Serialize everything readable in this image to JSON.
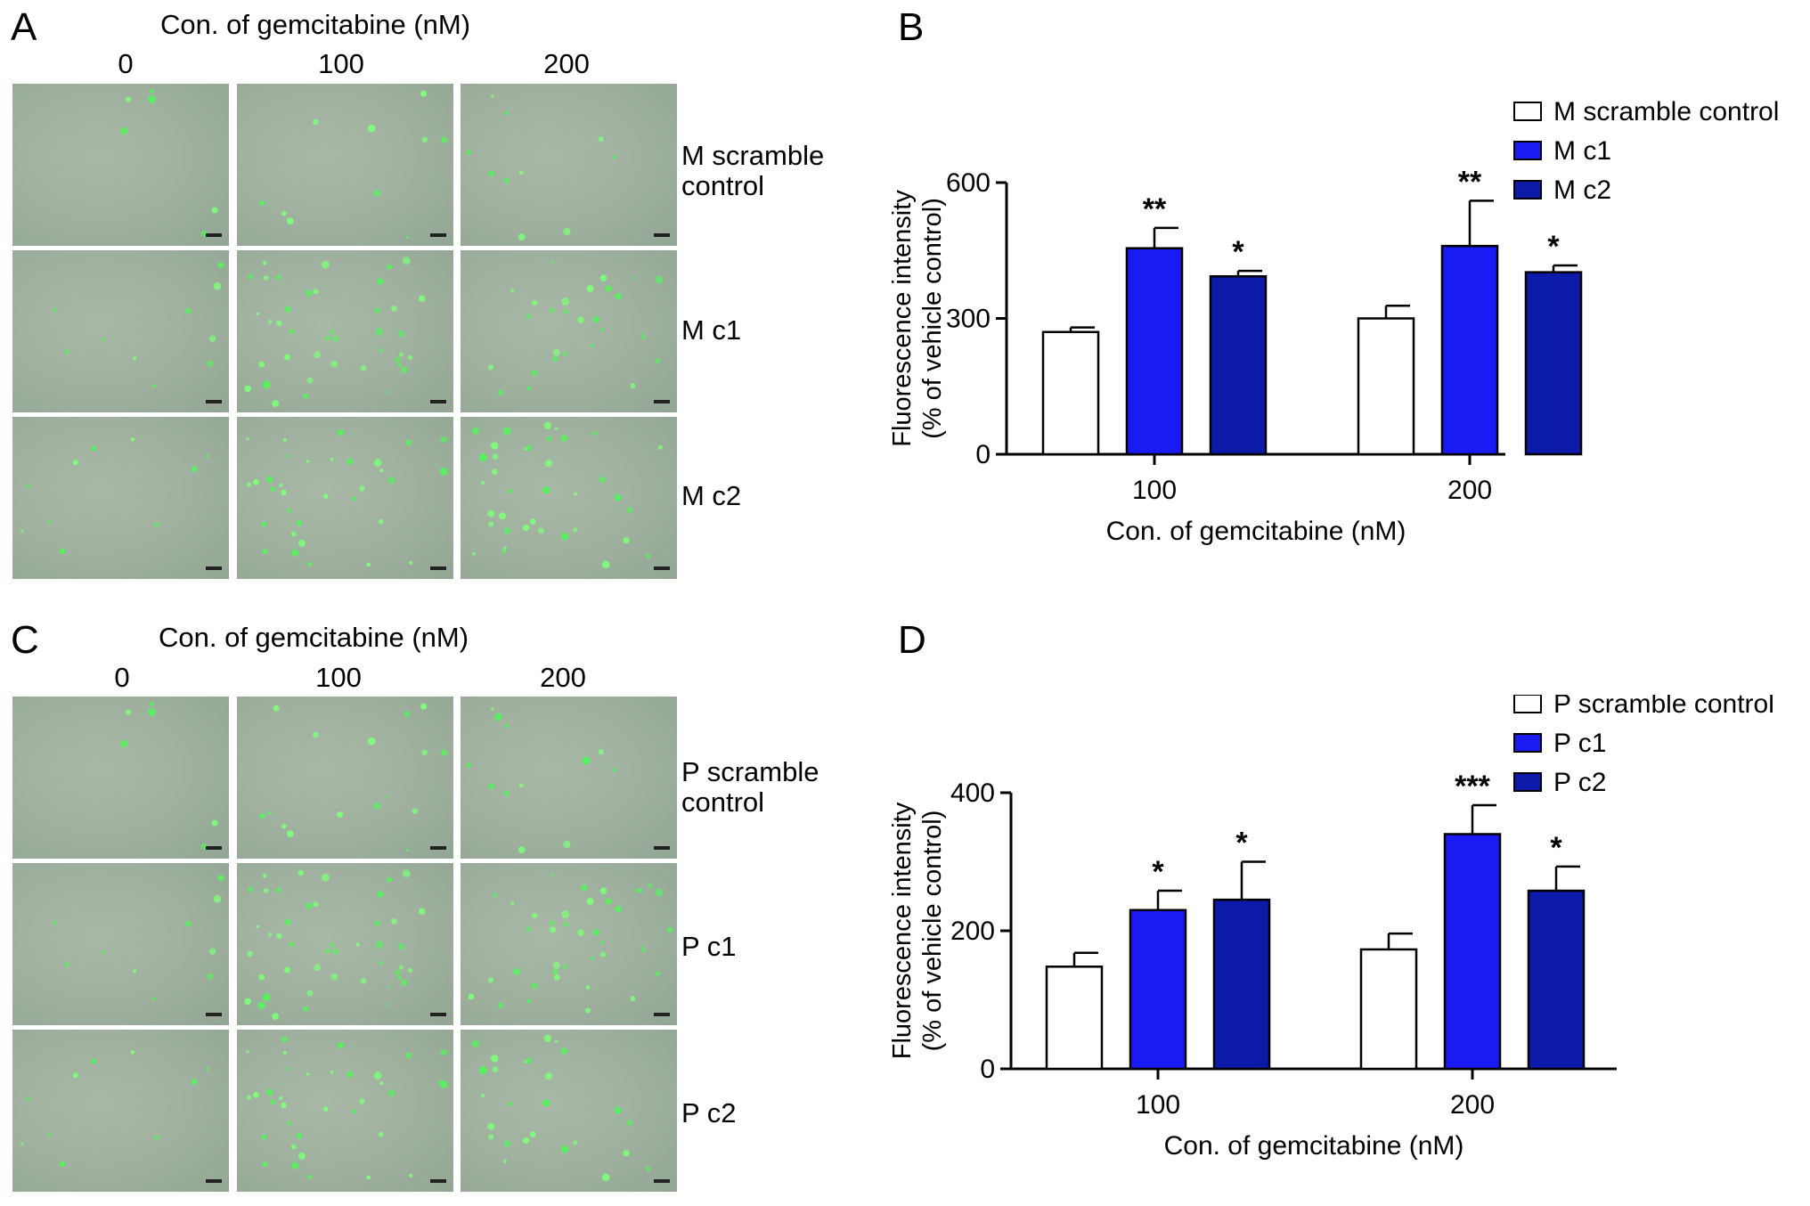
{
  "panels": {
    "A": {
      "letter": "A",
      "grid_title": "Con. of gemcitabine (nM)",
      "columns": [
        "0",
        "100",
        "200"
      ],
      "rows": [
        {
          "label_lines": [
            "M scramble",
            "control"
          ],
          "densities": [
            6,
            10,
            10
          ]
        },
        {
          "label_lines": [
            "M c1"
          ],
          "densities": [
            10,
            40,
            28
          ]
        },
        {
          "label_lines": [
            "M c2"
          ],
          "densities": [
            10,
            34,
            38
          ]
        }
      ]
    },
    "C": {
      "letter": "C",
      "grid_title": "Con. of gemcitabine (nM)",
      "columns": [
        "0",
        "100",
        "200"
      ],
      "rows": [
        {
          "label_lines": [
            "P scramble",
            "control"
          ],
          "densities": [
            6,
            16,
            12
          ]
        },
        {
          "label_lines": [
            "P c1"
          ],
          "densities": [
            10,
            45,
            40
          ]
        },
        {
          "label_lines": [
            "P c2"
          ],
          "densities": [
            10,
            36,
            26
          ]
        }
      ]
    },
    "B": {
      "letter": "B"
    },
    "D": {
      "letter": "D"
    }
  },
  "chart_data": [
    {
      "type": "bar",
      "panel": "B",
      "categories": [
        "100",
        "200"
      ],
      "xlabel": "Con. of gemcitabine (nM)",
      "ylabel_lines": [
        "Fluorescence intensity",
        "(% of vehicle control)"
      ],
      "ylim": [
        0,
        600
      ],
      "yticks": [
        "0",
        "300",
        "600"
      ],
      "legend_position": "top-right",
      "series": [
        {
          "name": "M scramble control",
          "color": "#ffffff",
          "values": [
            270,
            300
          ],
          "errors": [
            10,
            28
          ],
          "significance": [
            "",
            ""
          ]
        },
        {
          "name": "M c1",
          "color": "#1a1af2",
          "values": [
            455,
            460
          ],
          "errors": [
            45,
            100
          ],
          "significance": [
            "**",
            "**"
          ]
        },
        {
          "name": "M c2",
          "color": "#0b1aa8",
          "values": [
            393,
            402
          ],
          "errors": [
            12,
            15
          ],
          "significance": [
            "*",
            "*"
          ]
        }
      ]
    },
    {
      "type": "bar",
      "panel": "D",
      "categories": [
        "100",
        "200"
      ],
      "xlabel": "Con. of gemcitabine (nM)",
      "ylabel_lines": [
        "Fluorescence intensity",
        "(% of vehicle control)"
      ],
      "ylim": [
        0,
        400
      ],
      "yticks": [
        "0",
        "200",
        "400"
      ],
      "legend_position": "top-right",
      "series": [
        {
          "name": "P scramble control",
          "color": "#ffffff",
          "values": [
            148,
            173
          ],
          "errors": [
            20,
            23
          ],
          "significance": [
            "",
            ""
          ]
        },
        {
          "name": "P c1",
          "color": "#1a1af2",
          "values": [
            230,
            340
          ],
          "errors": [
            28,
            42
          ],
          "significance": [
            "*",
            "***"
          ]
        },
        {
          "name": "P c2",
          "color": "#0b1aa8",
          "values": [
            245,
            258
          ],
          "errors": [
            55,
            35
          ],
          "significance": [
            "*",
            "*"
          ]
        }
      ]
    }
  ]
}
